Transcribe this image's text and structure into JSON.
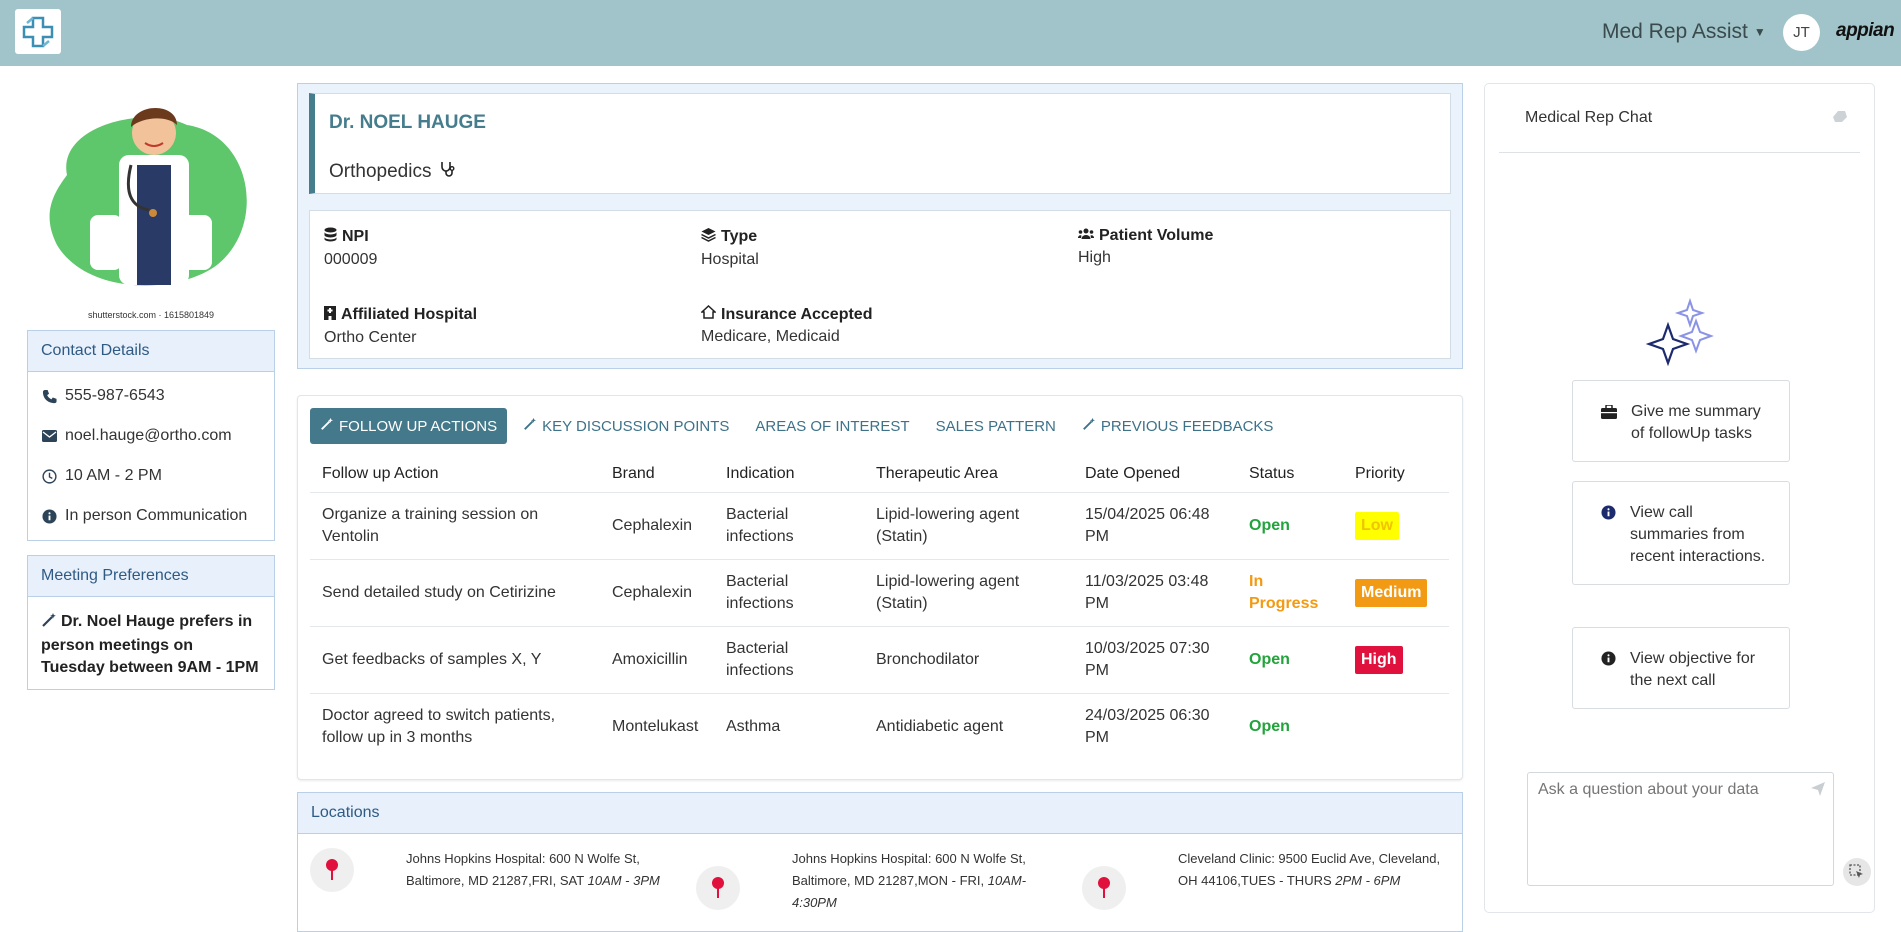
{
  "header": {
    "app_name": "Med Rep Assist",
    "user_initials": "JT",
    "brand": "appian",
    "colors": {
      "bar": "#a0c4c9",
      "accent": "#44798b"
    }
  },
  "profile_image": {
    "credit": "shutterstock.com · 1615801849"
  },
  "contact": {
    "title": "Contact Details",
    "phone": "555-987-6543",
    "email": "noel.hauge@ortho.com",
    "hours": "10 AM - 2 PM",
    "communication": "In person Communication"
  },
  "meeting": {
    "title": "Meeting Preferences",
    "text": "Dr. Noel Hauge prefers in person meetings on Tuesday between 9AM - 1PM"
  },
  "doctor": {
    "name": "Dr. NOEL HAUGE",
    "specialty": "Orthopedics",
    "fields": {
      "npi_label": "NPI",
      "npi": "000009",
      "type_label": "Type",
      "type": "Hospital",
      "volume_label": "Patient Volume",
      "volume": "High",
      "hospital_label": "Affiliated Hospital",
      "hospital": "Ortho Center",
      "insurance_label": "Insurance Accepted",
      "insurance": "Medicare, Medicaid"
    }
  },
  "tabs": [
    {
      "label": "FOLLOW UP ACTIONS",
      "active": true
    },
    {
      "label": "KEY DISCUSSION POINTS",
      "active": false
    },
    {
      "label": "AREAS OF INTEREST",
      "active": false
    },
    {
      "label": "SALES PATTERN",
      "active": false
    },
    {
      "label": "PREVIOUS FEEDBACKS",
      "active": false
    }
  ],
  "table": {
    "columns": [
      "Follow up Action",
      "Brand",
      "Indication",
      "Therapeutic Area",
      "Date Opened",
      "Status",
      "Priority"
    ],
    "rows": [
      {
        "action": "Organize a training session on Ventolin",
        "brand": "Cephalexin",
        "indication": "Bacterial infections",
        "area": "Lipid-lowering agent (Statin)",
        "date": "15/04/2025 06:48 PM",
        "status": "Open",
        "priority": "Low"
      },
      {
        "action": "Send detailed study on Cetirizine",
        "brand": "Cephalexin",
        "indication": "Bacterial infections",
        "area": "Lipid-lowering agent (Statin)",
        "date": "11/03/2025 03:48 PM",
        "status": "In Progress",
        "priority": "Medium"
      },
      {
        "action": "Get feedbacks of samples X, Y",
        "brand": "Amoxicillin",
        "indication": "Bacterial infections",
        "area": "Bronchodilator",
        "date": "10/03/2025 07:30 PM",
        "status": "Open",
        "priority": "High"
      },
      {
        "action": "Doctor agreed to switch patients, follow up in 3 months",
        "brand": "Montelukast",
        "indication": "Asthma",
        "area": "Antidiabetic agent",
        "date": "24/03/2025 06:30 PM",
        "status": "Open",
        "priority": ""
      }
    ],
    "priority_colors": {
      "Low": "#ffff00",
      "Medium": "#f39a14",
      "High": "#e0113c"
    }
  },
  "locations": {
    "title": "Locations",
    "items": [
      {
        "address": "Johns Hopkins Hospital: 600 N Wolfe St, Baltimore, MD 21287,FRI, SAT",
        "hours": "10AM - 3PM"
      },
      {
        "address": "Johns Hopkins Hospital: 600 N Wolfe St, Baltimore, MD 21287,MON - FRI,",
        "hours": "10AM-4:30PM"
      },
      {
        "address": "Cleveland Clinic: 9500 Euclid Ave, Cleveland, OH 44106,TUES - THURS",
        "hours": "2PM - 6PM"
      }
    ]
  },
  "chat": {
    "title": "Medical Rep Chat",
    "suggestions": [
      "Give me summary of followUp tasks",
      "View call summaries from recent interactions.",
      "View objective for the next call"
    ],
    "placeholder": "Ask a question about your data"
  }
}
